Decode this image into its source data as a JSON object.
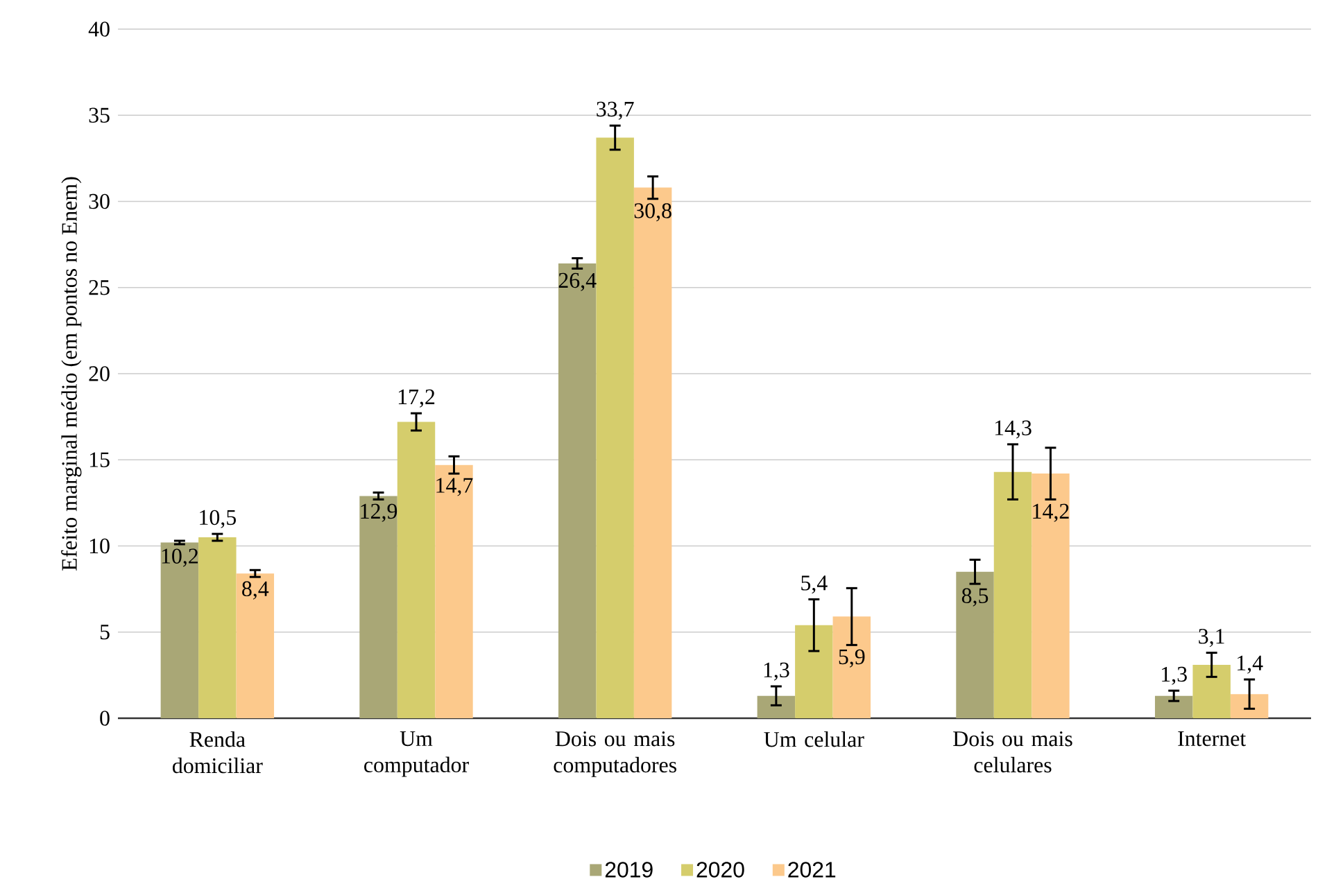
{
  "chart_data": {
    "type": "bar",
    "ylabel": "Efeito marginal médio (em pontos no Enem)",
    "categories": [
      "Renda domiciliar",
      "Um computador",
      "Dois ou mais computadores",
      "Um celular",
      "Dois ou mais celulares",
      "Internet"
    ],
    "series": [
      {
        "name": "2019",
        "color": "#a9a776",
        "values": [
          10.2,
          12.9,
          26.4,
          1.3,
          8.5,
          1.3
        ],
        "errors": [
          0.1,
          0.2,
          0.3,
          0.55,
          0.7,
          0.3
        ],
        "value_labels": [
          "10,2",
          "12,9",
          "26,4",
          "1,3",
          "8,5",
          "1,3"
        ]
      },
      {
        "name": "2020",
        "color": "#d5cd6c",
        "values": [
          10.5,
          17.2,
          33.7,
          5.4,
          14.3,
          3.1
        ],
        "errors": [
          0.2,
          0.5,
          0.7,
          1.5,
          1.6,
          0.7
        ],
        "value_labels": [
          "10,5",
          "17,2",
          "33,7",
          "5,4",
          "14,3",
          "3,1"
        ]
      },
      {
        "name": "2021",
        "color": "#fcc98c",
        "values": [
          8.4,
          14.7,
          30.8,
          5.9,
          14.2,
          1.4
        ],
        "errors": [
          0.2,
          0.5,
          0.65,
          1.65,
          1.5,
          0.85
        ],
        "value_labels": [
          "8,4",
          "14,7",
          "30,8",
          "5,9",
          "14,2",
          "1,4"
        ]
      }
    ],
    "ylim": [
      0,
      40
    ],
    "yticks": [
      0,
      5,
      10,
      15,
      20,
      25,
      30,
      35,
      40
    ],
    "grid": "y",
    "legend": "bottom"
  }
}
